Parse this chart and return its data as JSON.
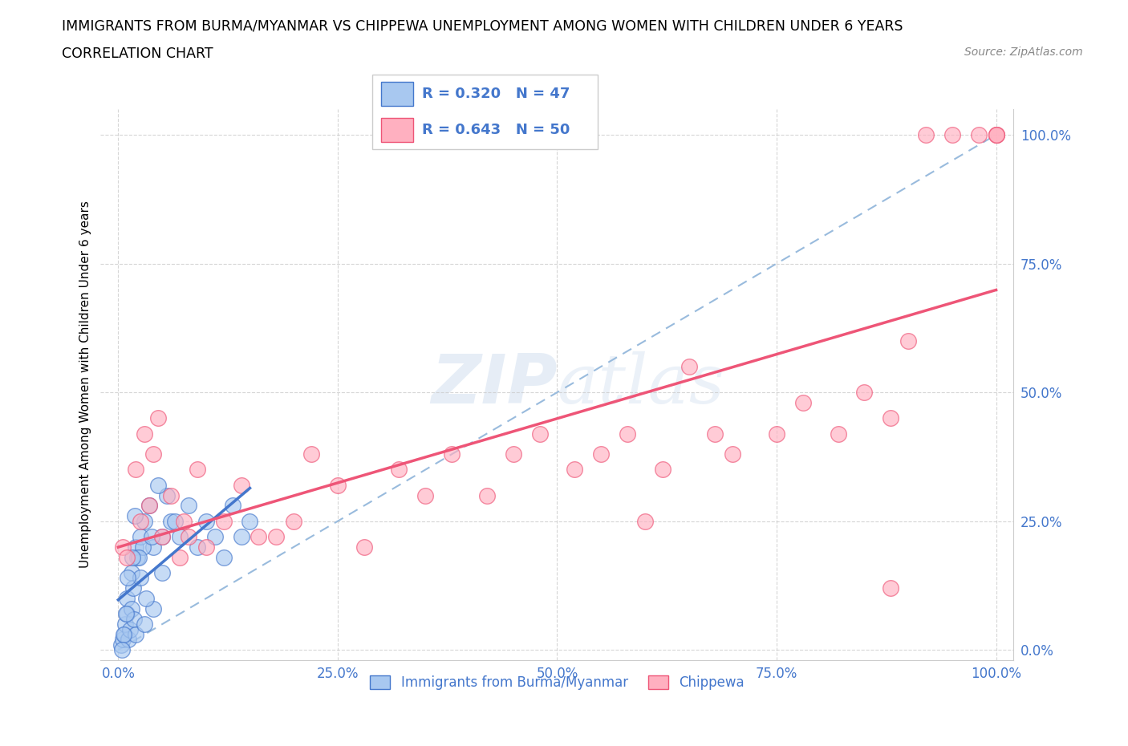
{
  "title_line1": "IMMIGRANTS FROM BURMA/MYANMAR VS CHIPPEWA UNEMPLOYMENT AMONG WOMEN WITH CHILDREN UNDER 6 YEARS",
  "title_line2": "CORRELATION CHART",
  "source_text": "Source: ZipAtlas.com",
  "ylabel": "Unemployment Among Women with Children Under 6 years",
  "x_tick_values": [
    0,
    25,
    50,
    75,
    100
  ],
  "y_tick_values": [
    0,
    25,
    50,
    75,
    100
  ],
  "xlim": [
    -2,
    102
  ],
  "ylim": [
    -2,
    105
  ],
  "legend_label1": "Immigrants from Burma/Myanmar",
  "legend_label2": "Chippewa",
  "color1": "#A8C8F0",
  "color2": "#FFB0C0",
  "line_color1": "#4477CC",
  "line_color2": "#EE5577",
  "dash_color": "#99BBDD",
  "blue_scatter_x": [
    0.3,
    0.5,
    0.7,
    0.8,
    1.0,
    1.0,
    1.2,
    1.3,
    1.5,
    1.5,
    1.7,
    1.8,
    2.0,
    2.0,
    2.2,
    2.5,
    2.5,
    3.0,
    3.0,
    3.5,
    4.0,
    4.0,
    5.0,
    5.0,
    5.5,
    6.0,
    7.0,
    8.0,
    9.0,
    10.0,
    11.0,
    12.0,
    13.0,
    14.0,
    15.0,
    4.5,
    6.5,
    3.2,
    2.8,
    1.9,
    1.1,
    0.9,
    0.6,
    0.4,
    2.3,
    3.8,
    1.6
  ],
  "blue_scatter_y": [
    1,
    2,
    3,
    5,
    7,
    10,
    2,
    4,
    8,
    15,
    12,
    6,
    3,
    20,
    18,
    22,
    14,
    5,
    25,
    28,
    20,
    8,
    22,
    15,
    30,
    25,
    22,
    28,
    20,
    25,
    22,
    18,
    28,
    22,
    25,
    32,
    25,
    10,
    20,
    26,
    14,
    7,
    3,
    0,
    18,
    22,
    18
  ],
  "pink_scatter_x": [
    0.5,
    1.0,
    2.0,
    2.5,
    3.0,
    3.5,
    4.0,
    5.0,
    6.0,
    7.0,
    8.0,
    9.0,
    10.0,
    12.0,
    14.0,
    16.0,
    20.0,
    22.0,
    25.0,
    28.0,
    32.0,
    35.0,
    38.0,
    42.0,
    45.0,
    48.0,
    52.0,
    55.0,
    58.0,
    62.0,
    65.0,
    68.0,
    70.0,
    75.0,
    78.0,
    82.0,
    85.0,
    88.0,
    90.0,
    92.0,
    95.0,
    98.0,
    100.0,
    100.0,
    100.0,
    4.5,
    7.5,
    18.0,
    60.0,
    88.0
  ],
  "pink_scatter_y": [
    20,
    18,
    35,
    25,
    42,
    28,
    38,
    22,
    30,
    18,
    22,
    35,
    20,
    25,
    32,
    22,
    25,
    38,
    32,
    20,
    35,
    30,
    38,
    30,
    38,
    42,
    35,
    38,
    42,
    35,
    55,
    42,
    38,
    42,
    48,
    42,
    50,
    45,
    60,
    100,
    100,
    100,
    100,
    100,
    100,
    45,
    25,
    22,
    25,
    12
  ],
  "pink_reg_x0": 0,
  "pink_reg_y0": 20,
  "pink_reg_x1": 100,
  "pink_reg_y1": 75,
  "blue_reg_x0": 0,
  "blue_reg_y0": 5,
  "blue_reg_x1": 15,
  "blue_reg_y1": 25
}
